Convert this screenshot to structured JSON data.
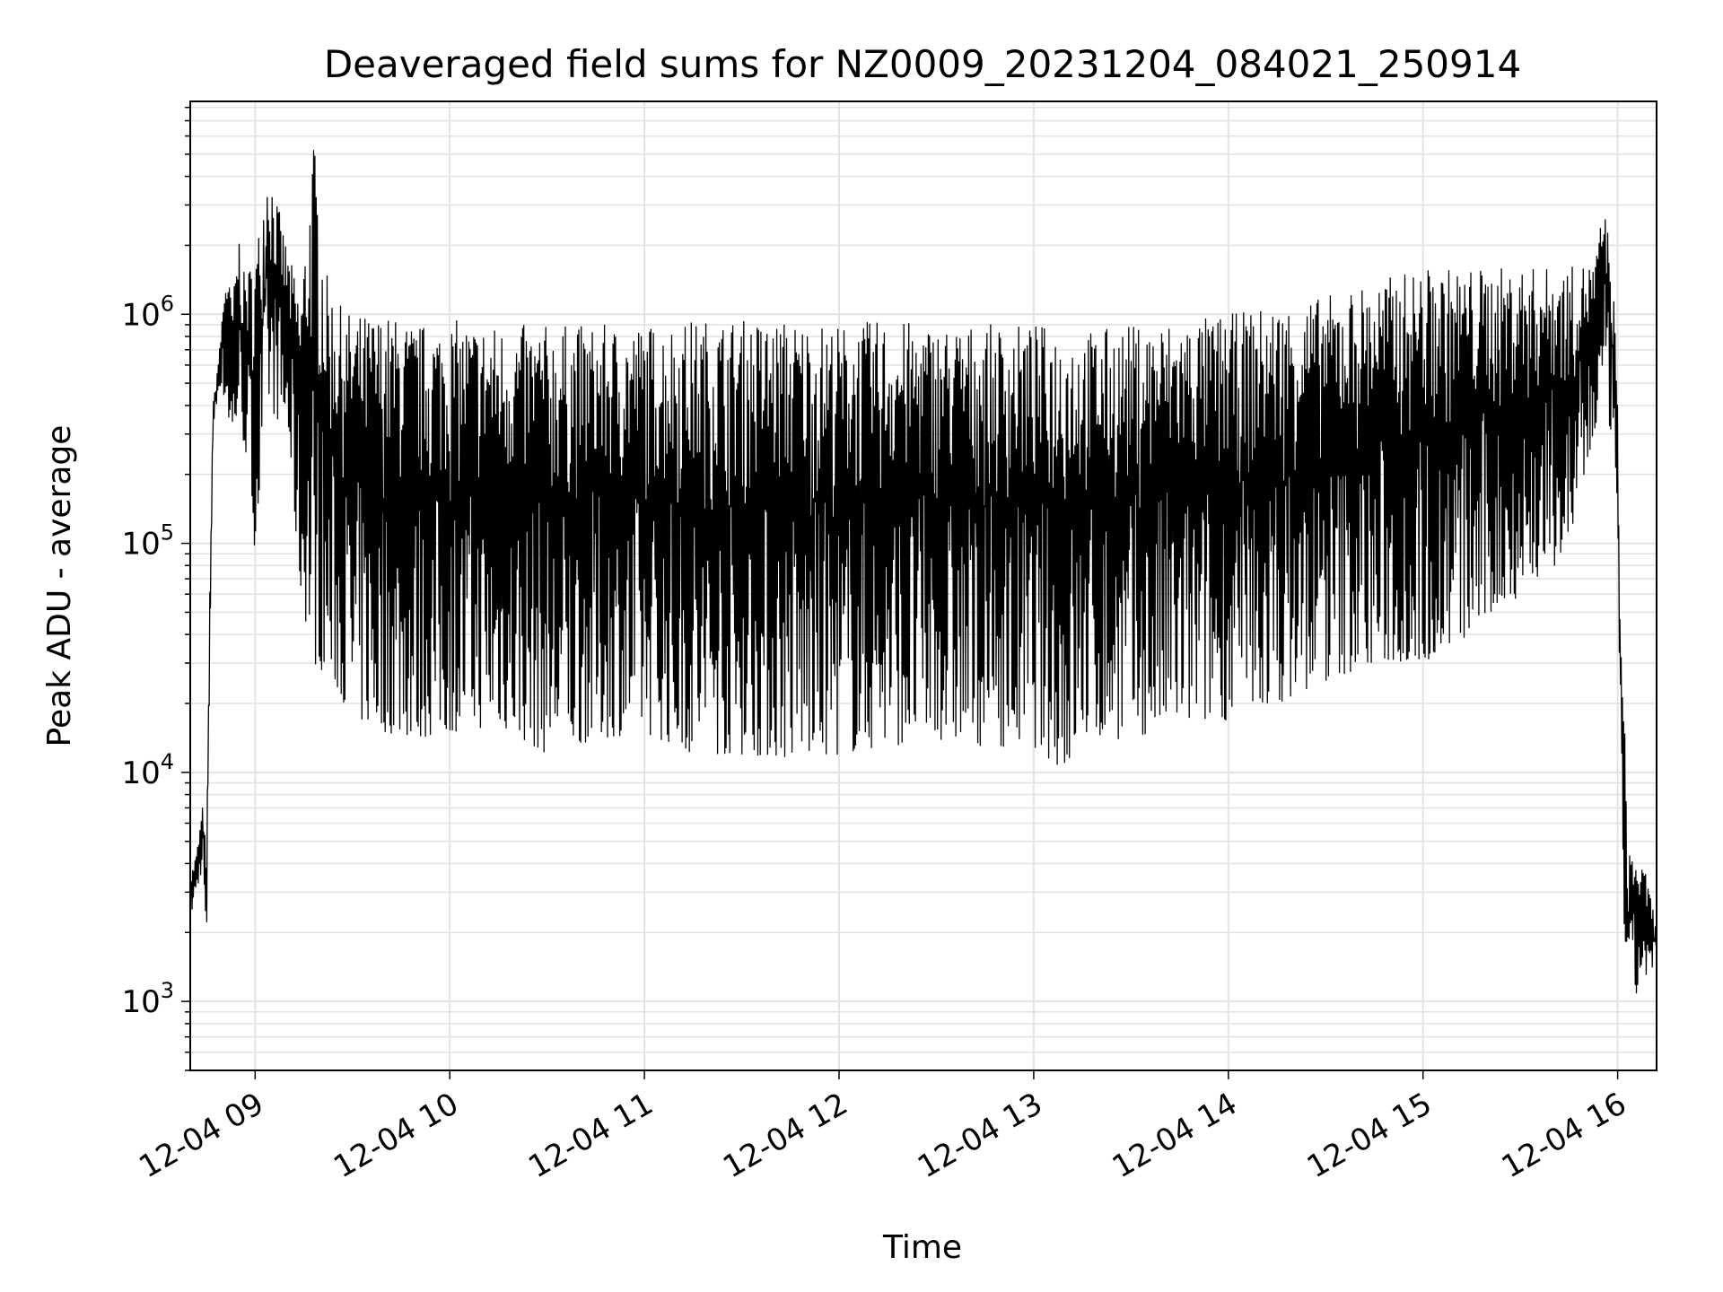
{
  "chart_data": {
    "type": "line",
    "title": "Deaveraged field sums for NZ0009_20231204_084021_250914",
    "xlabel": "Time",
    "ylabel": "Peak ADU - average",
    "y_scale": "log",
    "ylim": [
      500,
      8500000
    ],
    "xlim": [
      "2023-12-04 08:40",
      "2023-12-04 16:12"
    ],
    "grid": true,
    "grid_minor": true,
    "line_color": "#000000",
    "x_tick_labels": [
      "12-04 09",
      "12-04 10",
      "12-04 11",
      "12-04 12",
      "12-04 13",
      "12-04 14",
      "12-04 15",
      "12-04 16"
    ],
    "x_tick_values": [
      "2023-12-04 09:00",
      "2023-12-04 10:00",
      "2023-12-04 11:00",
      "2023-12-04 12:00",
      "2023-12-04 13:00",
      "2023-12-04 14:00",
      "2023-12-04 15:00",
      "2023-12-04 16:00"
    ],
    "y_tick_values": [
      1000,
      10000,
      100000,
      1000000
    ],
    "y_tick_labels": [
      {
        "base": "10",
        "exp": "3"
      },
      {
        "base": "10",
        "exp": "4"
      },
      {
        "base": "10",
        "exp": "5"
      },
      {
        "base": "10",
        "exp": "6"
      }
    ],
    "series": [
      {
        "x": [
          "2023-12-04 08:40",
          "2023-12-04 08:42",
          "2023-12-04 08:44",
          "2023-12-04 08:45",
          "2023-12-04 08:46",
          "2023-12-04 08:47",
          "2023-12-04 08:49",
          "2023-12-04 08:51",
          "2023-12-04 08:53",
          "2023-12-04 08:55",
          "2023-12-04 08:56",
          "2023-12-04 08:58",
          "2023-12-04 09:00",
          "2023-12-04 09:04",
          "2023-12-04 09:10",
          "2023-12-04 09:14",
          "2023-12-04 09:18",
          "2023-12-04 09:22",
          "2023-12-04 09:26",
          "2023-12-04 09:30",
          "2023-12-04 09:40",
          "2023-12-04 09:50",
          "2023-12-04 10:00",
          "2023-12-04 10:15",
          "2023-12-04 10:30",
          "2023-12-04 10:45",
          "2023-12-04 11:00",
          "2023-12-04 11:15",
          "2023-12-04 11:30",
          "2023-12-04 11:45",
          "2023-12-04 12:00",
          "2023-12-04 12:15",
          "2023-12-04 12:30",
          "2023-12-04 12:45",
          "2023-12-04 13:00",
          "2023-12-04 13:10",
          "2023-12-04 13:15",
          "2023-12-04 13:30",
          "2023-12-04 13:45",
          "2023-12-04 14:00",
          "2023-12-04 14:15",
          "2023-12-04 14:30",
          "2023-12-04 14:45",
          "2023-12-04 15:00",
          "2023-12-04 15:15",
          "2023-12-04 15:30",
          "2023-12-04 15:45",
          "2023-12-04 15:53",
          "2023-12-04 15:56",
          "2023-12-04 15:59",
          "2023-12-04 16:00",
          "2023-12-04 16:01",
          "2023-12-04 16:02",
          "2023-12-04 16:03",
          "2023-12-04 16:05",
          "2023-12-04 16:07",
          "2023-12-04 16:09",
          "2023-12-04 16:11"
        ],
        "y_high": [
          3500,
          4500,
          7500,
          4000,
          60000,
          400000,
          700000,
          1700000,
          1100000,
          2300000,
          1500000,
          1600000,
          1800000,
          4800000,
          1900000,
          1200000,
          6000000,
          1500000,
          1100000,
          1000000,
          1000000,
          900000,
          950000,
          900000,
          900000,
          900000,
          900000,
          950000,
          950000,
          950000,
          900000,
          950000,
          900000,
          900000,
          900000,
          900000,
          850000,
          900000,
          950000,
          1000000,
          1100000,
          1200000,
          1400000,
          1600000,
          1600000,
          1600000,
          1600000,
          1700000,
          3300000,
          1100000,
          400000,
          35000,
          20000,
          5000,
          4500,
          4000,
          3500,
          2500
        ],
        "y_low": [
          2300,
          3000,
          4000,
          1300,
          30000,
          300000,
          500000,
          400000,
          250000,
          400000,
          300000,
          200000,
          90000,
          400000,
          300000,
          60000,
          30000,
          27000,
          22000,
          17000,
          15000,
          14000,
          15000,
          16000,
          12000,
          14000,
          15000,
          12000,
          12000,
          11500,
          12000,
          13000,
          14000,
          13000,
          13000,
          10000,
          14000,
          14000,
          16000,
          17000,
          20000,
          25000,
          30000,
          30000,
          40000,
          60000,
          90000,
          300000,
          400000,
          260000,
          35000,
          18000,
          2000,
          800,
          1000,
          1200,
          1300,
          1300
        ]
      }
    ]
  }
}
